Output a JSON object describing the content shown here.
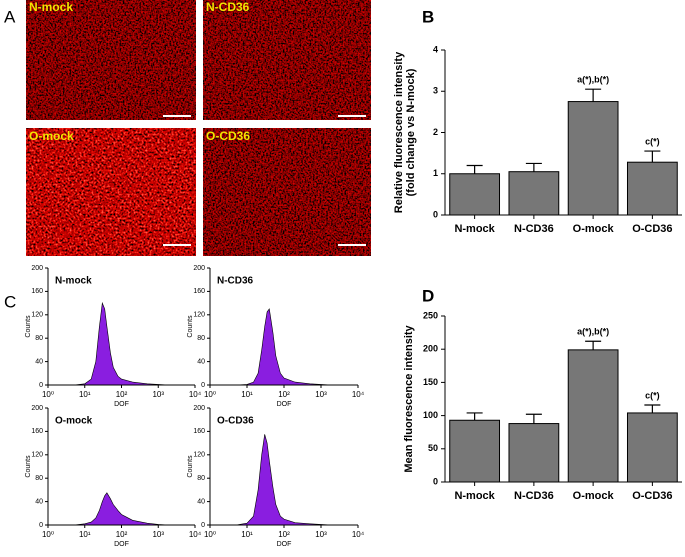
{
  "panel_labels": [
    "A",
    "B",
    "C",
    "D"
  ],
  "images": [
    "N-mock",
    "N-CD36",
    "O-mock",
    "O-CD36"
  ],
  "chart_data": [
    {
      "type": "bar",
      "panel": "B",
      "ylabel": [
        "Relative fluorescence intensity",
        "(fold change vs N-mock)"
      ],
      "categories": [
        "N-mock",
        "N-CD36",
        "O-mock",
        "O-CD36"
      ],
      "values": [
        1.0,
        1.05,
        2.75,
        1.28
      ],
      "errors": [
        0.2,
        0.2,
        0.3,
        0.27
      ],
      "color": "#777777",
      "ylim": [
        0,
        4
      ],
      "yticks": [
        0,
        1,
        2,
        3,
        4
      ],
      "annotations": [
        {
          "text": "a(*),b(*)",
          "category": "O-mock"
        },
        {
          "text": "c(*)",
          "category": "O-CD36"
        }
      ]
    },
    {
      "type": "bar",
      "panel": "D",
      "ylabel": "Mean fluorescence intensity",
      "categories": [
        "N-mock",
        "N-CD36",
        "O-mock",
        "O-CD36"
      ],
      "values": [
        93,
        88,
        199,
        104
      ],
      "errors": [
        11,
        14,
        13,
        12
      ],
      "color": "#777777",
      "ylim": [
        0,
        250
      ],
      "yticks": [
        0,
        50,
        100,
        150,
        200,
        250
      ],
      "annotations": [
        {
          "text": "a(*),b(*)",
          "category": "O-mock"
        },
        {
          "text": "c(*)",
          "category": "O-CD36"
        }
      ]
    },
    {
      "type": "area",
      "title": "N-mock",
      "xlabel": "DOF",
      "ylabel": "Counts",
      "log_x": true,
      "color": "#8a1ee0",
      "x": [
        5,
        10,
        15,
        20,
        25,
        30,
        35,
        40,
        50,
        60,
        80,
        100,
        200,
        500,
        1000,
        2000
      ],
      "values": [
        0,
        2,
        10,
        40,
        100,
        140,
        130,
        100,
        55,
        30,
        15,
        10,
        5,
        2,
        1,
        0
      ],
      "xlim": [
        1,
        10000
      ],
      "xticks": [
        {
          "value": 1,
          "label": "10⁰"
        },
        {
          "value": 10,
          "label": "10¹"
        },
        {
          "value": 100,
          "label": "10²"
        },
        {
          "value": 1000,
          "label": "10³"
        },
        {
          "value": 10000,
          "label": "10⁴"
        }
      ],
      "ylim": [
        0,
        200
      ],
      "yticks": [
        0,
        40,
        80,
        120,
        160,
        200
      ]
    },
    {
      "type": "area",
      "title": "N-CD36",
      "xlabel": "DOF",
      "ylabel": "Counts",
      "log_x": true,
      "color": "#8a1ee0",
      "x": [
        5,
        10,
        15,
        20,
        25,
        30,
        35,
        40,
        50,
        60,
        80,
        100,
        200,
        500,
        1000,
        2000
      ],
      "values": [
        0,
        1,
        5,
        20,
        60,
        100,
        125,
        130,
        90,
        50,
        20,
        12,
        5,
        2,
        1,
        0
      ],
      "xlim": [
        1,
        10000
      ],
      "xticks": [
        {
          "value": 1,
          "label": "10⁰"
        },
        {
          "value": 10,
          "label": "10¹"
        },
        {
          "value": 100,
          "label": "10²"
        },
        {
          "value": 1000,
          "label": "10³"
        },
        {
          "value": 10000,
          "label": "10⁴"
        }
      ],
      "ylim": [
        0,
        200
      ],
      "yticks": [
        0,
        40,
        80,
        120,
        160,
        200
      ]
    },
    {
      "type": "area",
      "title": "O-mock",
      "xlabel": "DOF",
      "ylabel": "Counts",
      "log_x": true,
      "color": "#8a1ee0",
      "x": [
        5,
        10,
        15,
        20,
        25,
        30,
        35,
        40,
        50,
        60,
        80,
        100,
        200,
        500,
        1000,
        2000
      ],
      "values": [
        0,
        2,
        5,
        12,
        25,
        40,
        50,
        55,
        45,
        35,
        25,
        18,
        8,
        3,
        1,
        0
      ],
      "xlim": [
        1,
        10000
      ],
      "xticks": [
        {
          "value": 1,
          "label": "10⁰"
        },
        {
          "value": 10,
          "label": "10¹"
        },
        {
          "value": 100,
          "label": "10²"
        },
        {
          "value": 1000,
          "label": "10³"
        },
        {
          "value": 10000,
          "label": "10⁴"
        }
      ],
      "ylim": [
        0,
        200
      ],
      "yticks": [
        0,
        40,
        80,
        120,
        160,
        200
      ]
    },
    {
      "type": "area",
      "title": "O-CD36",
      "xlabel": "DOF",
      "ylabel": "Counts",
      "log_x": true,
      "color": "#8a1ee0",
      "x": [
        5,
        10,
        15,
        20,
        25,
        30,
        35,
        40,
        50,
        60,
        80,
        100,
        200,
        500,
        1000,
        2000
      ],
      "values": [
        0,
        3,
        15,
        60,
        120,
        155,
        140,
        110,
        65,
        35,
        15,
        10,
        4,
        2,
        1,
        0
      ],
      "xlim": [
        1,
        10000
      ],
      "xticks": [
        {
          "value": 1,
          "label": "10⁰"
        },
        {
          "value": 10,
          "label": "10¹"
        },
        {
          "value": 100,
          "label": "10²"
        },
        {
          "value": 1000,
          "label": "10³"
        },
        {
          "value": 10000,
          "label": "10⁴"
        }
      ],
      "ylim": [
        0,
        200
      ],
      "yticks": [
        0,
        40,
        80,
        120,
        160,
        200
      ]
    }
  ]
}
